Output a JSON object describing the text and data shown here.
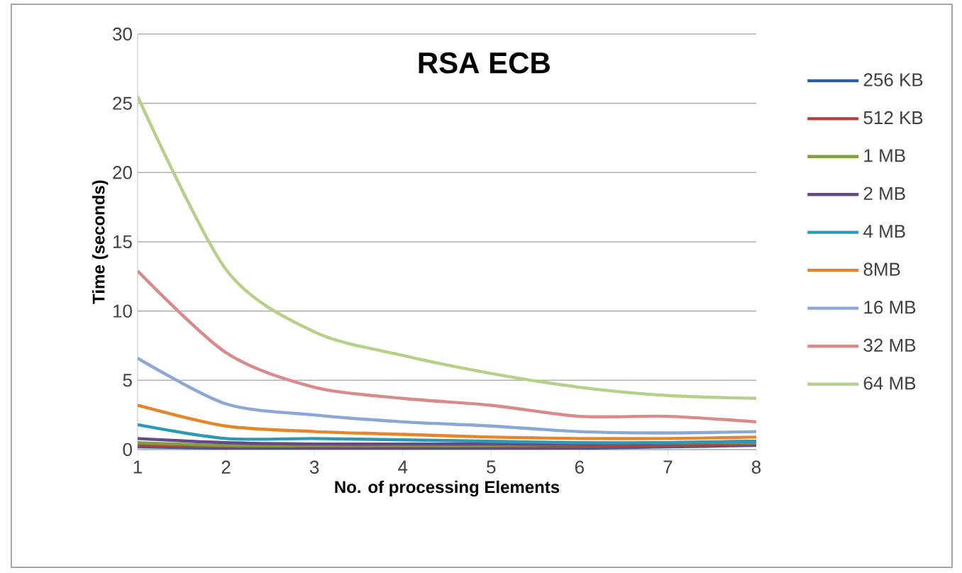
{
  "chart_data": {
    "type": "line",
    "title": "RSA ECB",
    "xlabel": "No. of processing Elements",
    "ylabel": "Time (seconds)",
    "x": [
      1,
      2,
      3,
      4,
      5,
      6,
      7,
      8
    ],
    "series": [
      {
        "name": "256 KB",
        "color": "#2e5f9e",
        "values": [
          0.2,
          0.1,
          0.1,
          0.1,
          0.1,
          0.1,
          0.2,
          0.3
        ]
      },
      {
        "name": "512 KB",
        "color": "#b0413e",
        "values": [
          0.3,
          0.2,
          0.2,
          0.2,
          0.2,
          0.2,
          0.3,
          0.4
        ]
      },
      {
        "name": "1 MB",
        "color": "#7fa03a",
        "values": [
          0.5,
          0.3,
          0.3,
          0.3,
          0.3,
          0.4,
          0.5,
          0.5
        ]
      },
      {
        "name": "2 MB",
        "color": "#654a8a",
        "values": [
          0.8,
          0.5,
          0.4,
          0.4,
          0.4,
          0.4,
          0.5,
          0.6
        ]
      },
      {
        "name": "4 MB",
        "color": "#2d9ab5",
        "values": [
          1.8,
          0.8,
          0.8,
          0.7,
          0.6,
          0.5,
          0.5,
          0.6
        ]
      },
      {
        "name": "8MB",
        "color": "#e6862a",
        "values": [
          3.2,
          1.7,
          1.3,
          1.1,
          0.9,
          0.8,
          0.8,
          0.9
        ]
      },
      {
        "name": "16 MB",
        "color": "#8aa7d6",
        "values": [
          6.6,
          3.3,
          2.5,
          2.0,
          1.7,
          1.3,
          1.2,
          1.3
        ]
      },
      {
        "name": "32 MB",
        "color": "#d98a8a",
        "values": [
          12.9,
          7.0,
          4.5,
          3.7,
          3.2,
          2.4,
          2.4,
          2.0
        ]
      },
      {
        "name": "64 MB",
        "color": "#b6d08a",
        "values": [
          25.5,
          13.0,
          8.5,
          6.8,
          5.5,
          4.5,
          3.9,
          3.7
        ]
      }
    ],
    "xlim": [
      1,
      8
    ],
    "ylim": [
      0,
      30
    ],
    "xticks": [
      1,
      2,
      3,
      4,
      5,
      6,
      7,
      8
    ],
    "yticks": [
      0,
      5,
      10,
      15,
      20,
      25,
      30
    ],
    "grid": "y",
    "legend": "right",
    "marker": "none",
    "line_style": "solid"
  }
}
